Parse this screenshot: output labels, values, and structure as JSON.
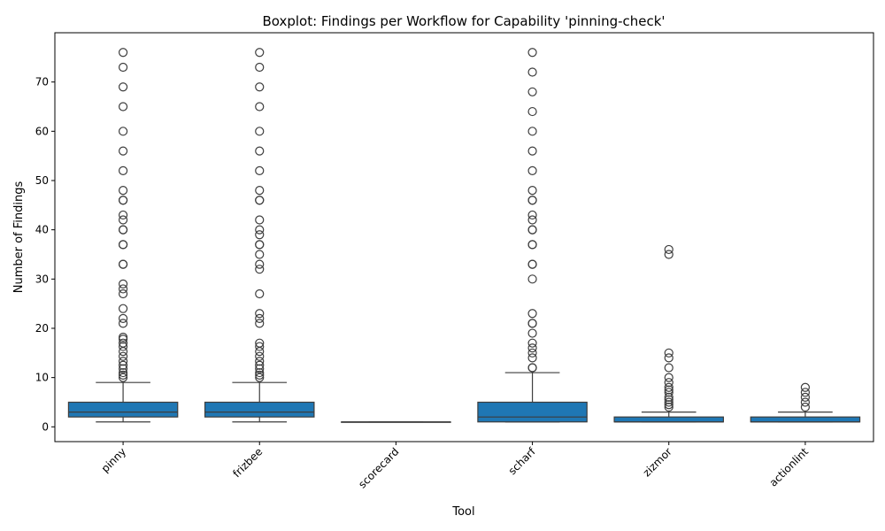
{
  "chart_data": {
    "type": "boxplot",
    "title": "Boxplot: Findings per Workflow for Capability 'pinning-check'",
    "xlabel": "Tool",
    "ylabel": "Number of Findings",
    "categories": [
      "pinny",
      "frizbee",
      "scorecard",
      "scharf",
      "zizmor",
      "actionlint"
    ],
    "ylim": [
      -3,
      80
    ],
    "yticks": [
      0,
      10,
      20,
      30,
      40,
      50,
      60,
      70
    ],
    "box_color": "#1f77b4",
    "grid": false,
    "boxes": [
      {
        "name": "pinny",
        "whisker_low": 1,
        "q1": 2,
        "median": 3,
        "q3": 5,
        "whisker_high": 9,
        "outliers": [
          10,
          10.5,
          11,
          11.8,
          12.5,
          13.3,
          14.3,
          15.3,
          16.3,
          17,
          17.8,
          18.2,
          21,
          22,
          24,
          27,
          28,
          29,
          33,
          33,
          37,
          37,
          40,
          40,
          42,
          43,
          46,
          46,
          48,
          52,
          56,
          60,
          65,
          69,
          73,
          76
        ]
      },
      {
        "name": "frizbee",
        "whisker_low": 1,
        "q1": 2,
        "median": 3,
        "q3": 5,
        "whisker_high": 9,
        "outliers": [
          10,
          10.5,
          11,
          11.8,
          12.5,
          13.3,
          14.3,
          15.3,
          16.3,
          17,
          21,
          22,
          23,
          27,
          32,
          33,
          35,
          37,
          37,
          39,
          40,
          42,
          46,
          46,
          48,
          52,
          56,
          60,
          65,
          69,
          73,
          76
        ]
      },
      {
        "name": "scorecard",
        "whisker_low": 1,
        "q1": 1,
        "median": 1,
        "q3": 1,
        "whisker_high": 1,
        "outliers": []
      },
      {
        "name": "scharf",
        "whisker_low": 1,
        "q1": 1,
        "median": 2,
        "q3": 5,
        "whisker_high": 11,
        "outliers": [
          12,
          12,
          14,
          15,
          16,
          17,
          19,
          21,
          21,
          23,
          30,
          33,
          33,
          37,
          37,
          40,
          40,
          42,
          43,
          46,
          46,
          48,
          52,
          56,
          60,
          64,
          68,
          72,
          76
        ]
      },
      {
        "name": "zizmor",
        "whisker_low": 1,
        "q1": 1,
        "median": 1,
        "q3": 2,
        "whisker_high": 3,
        "outliers": [
          4,
          4.5,
          5,
          5.5,
          6,
          7,
          7.5,
          8,
          9,
          10,
          12,
          14,
          15,
          35,
          36
        ]
      },
      {
        "name": "actionlint",
        "whisker_low": 1,
        "q1": 1,
        "median": 1,
        "q3": 2,
        "whisker_high": 3,
        "outliers": [
          4,
          5,
          6,
          7,
          8
        ]
      }
    ]
  }
}
